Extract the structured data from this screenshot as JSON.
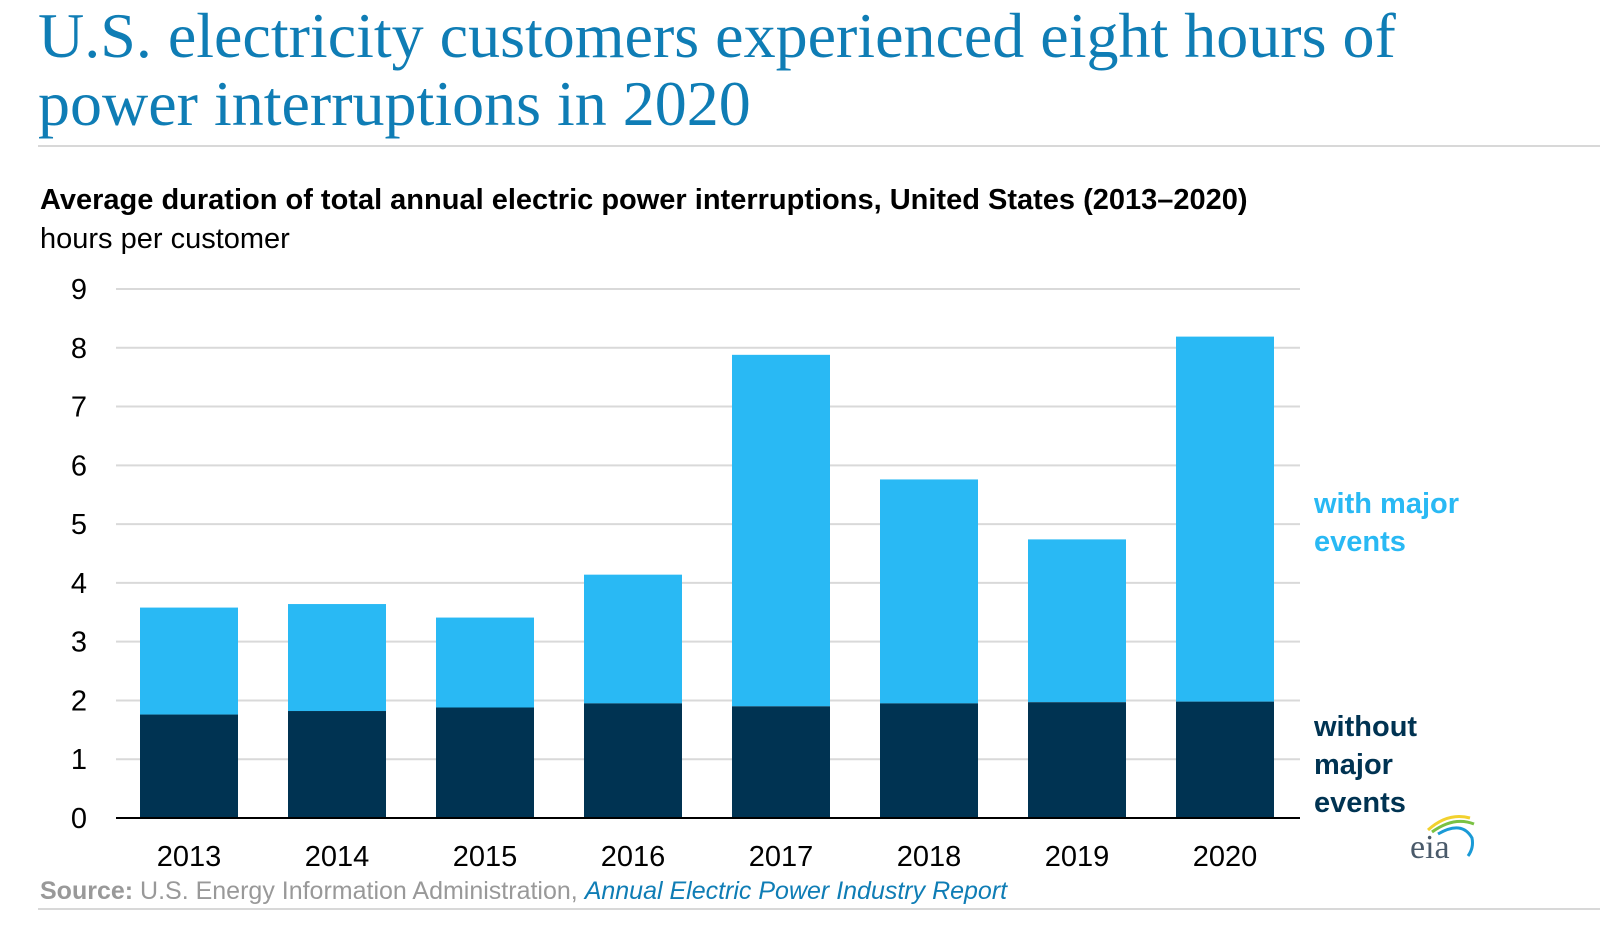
{
  "header": {
    "title": "U.S. electricity customers experienced eight hours of power interruptions in 2020"
  },
  "chart_data": {
    "type": "bar",
    "stacked": true,
    "title": "Average duration of total annual electric power interruptions, United States (2013–2020)",
    "ylabel": "hours per customer",
    "xlabel": "",
    "categories": [
      "2013",
      "2014",
      "2015",
      "2016",
      "2017",
      "2018",
      "2019",
      "2020"
    ],
    "series": [
      {
        "name": "without major events",
        "color": "#003352",
        "values": [
          1.76,
          1.82,
          1.88,
          1.95,
          1.9,
          1.95,
          1.97,
          1.98
        ]
      },
      {
        "name": "with major events",
        "color": "#29b9f4",
        "total_values": [
          3.58,
          3.64,
          3.41,
          4.14,
          7.88,
          5.76,
          4.74,
          8.19
        ]
      }
    ],
    "ylim": [
      0,
      9
    ],
    "yticks": [
      "0",
      "1",
      "2",
      "3",
      "4",
      "5",
      "6",
      "7",
      "8",
      "9"
    ],
    "grid": true,
    "legend": "right",
    "legend_labels": {
      "major": [
        "with major",
        "events"
      ],
      "minor": [
        "without",
        "major",
        "events"
      ]
    }
  },
  "footer": {
    "source_label": "Source:",
    "source_text": " U.S. Energy Information Administration, ",
    "report_link": "Annual Electric Power Industry Report"
  },
  "logo": {
    "text": "eia"
  }
}
